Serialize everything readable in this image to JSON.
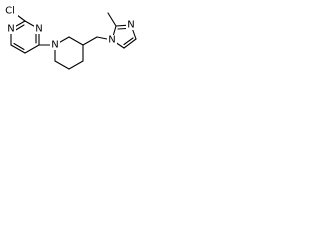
{
  "atoms": {
    "chlorine": "Cl",
    "pyrimidine_n1": "N",
    "pyrimidine_n3": "N",
    "piperidine_n": "N",
    "imidazole_n1": "N",
    "imidazole_n3": "N"
  }
}
